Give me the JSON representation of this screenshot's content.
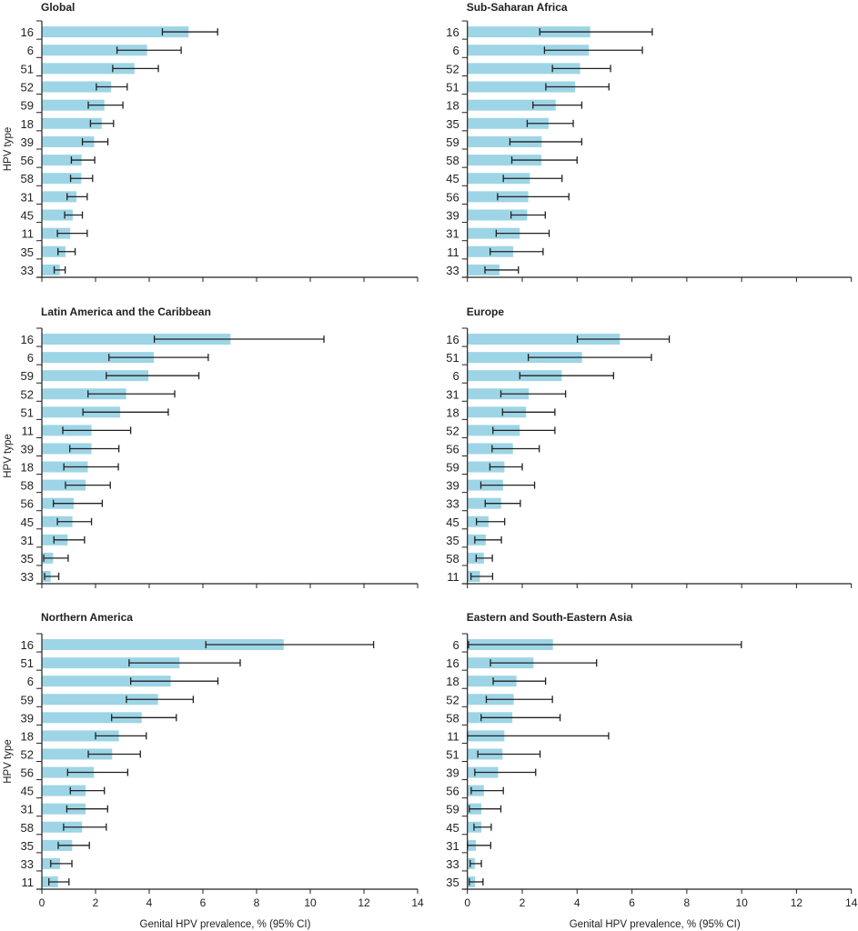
{
  "chart_data": [
    {
      "type": "bar",
      "orientation": "horizontal",
      "title": "Global",
      "xlabel": "",
      "ylabel": "HPV type",
      "xlim": [
        0,
        14
      ],
      "xticks": [
        0,
        2,
        4,
        6,
        8,
        10,
        12,
        14
      ],
      "grid": false,
      "bar_color": "#9dd5e6",
      "error_bars": "95% CI",
      "categories": [
        "16",
        "6",
        "51",
        "52",
        "59",
        "18",
        "39",
        "56",
        "58",
        "31",
        "45",
        "11",
        "35",
        "33"
      ],
      "values": [
        5.47,
        3.92,
        3.45,
        2.58,
        2.33,
        2.23,
        1.95,
        1.48,
        1.47,
        1.29,
        1.15,
        1.06,
        0.88,
        0.67
      ],
      "ci_low": [
        4.49,
        2.8,
        2.64,
        2.03,
        1.73,
        1.81,
        1.51,
        1.1,
        1.07,
        0.94,
        0.85,
        0.58,
        0.6,
        0.46
      ],
      "ci_high": [
        6.55,
        5.19,
        4.34,
        3.18,
        3.02,
        2.67,
        2.46,
        1.97,
        1.89,
        1.69,
        1.51,
        1.69,
        1.24,
        0.87
      ]
    },
    {
      "type": "bar",
      "orientation": "horizontal",
      "title": "Sub-Saharan Africa",
      "xlabel": "",
      "ylabel": "",
      "xlim": [
        0,
        14
      ],
      "xticks": [
        0,
        2,
        4,
        6,
        8,
        10,
        12,
        14
      ],
      "grid": false,
      "bar_color": "#9dd5e6",
      "error_bars": "95% CI",
      "categories": [
        "16",
        "6",
        "52",
        "51",
        "18",
        "35",
        "59",
        "58",
        "45",
        "56",
        "39",
        "31",
        "11",
        "33"
      ],
      "values": [
        4.48,
        4.43,
        4.11,
        3.93,
        3.22,
        2.96,
        2.71,
        2.7,
        2.28,
        2.22,
        2.18,
        1.91,
        1.67,
        1.17
      ],
      "ci_low": [
        2.64,
        2.81,
        3.1,
        2.86,
        2.39,
        2.18,
        1.55,
        1.62,
        1.31,
        1.1,
        1.59,
        1.05,
        0.83,
        0.64
      ],
      "ci_high": [
        6.74,
        6.38,
        5.22,
        5.16,
        4.17,
        3.86,
        4.17,
        4.0,
        3.45,
        3.7,
        2.84,
        2.98,
        2.76,
        1.86
      ]
    },
    {
      "type": "bar",
      "orientation": "horizontal",
      "title": "Latin America and the Caribbean",
      "xlabel": "",
      "ylabel": "HPV type",
      "xlim": [
        0,
        14
      ],
      "xticks": [
        0,
        2,
        4,
        6,
        8,
        10,
        12,
        14
      ],
      "grid": false,
      "bar_color": "#9dd5e6",
      "error_bars": "95% CI",
      "categories": [
        "16",
        "6",
        "59",
        "52",
        "51",
        "11",
        "39",
        "18",
        "58",
        "56",
        "45",
        "31",
        "35",
        "33"
      ],
      "values": [
        7.03,
        4.17,
        3.97,
        3.14,
        2.92,
        1.85,
        1.85,
        1.71,
        1.63,
        1.19,
        1.14,
        0.96,
        0.42,
        0.33
      ],
      "ci_low": [
        4.19,
        2.5,
        2.4,
        1.72,
        1.53,
        0.78,
        1.04,
        0.82,
        0.88,
        0.43,
        0.58,
        0.45,
        0.07,
        0.1
      ],
      "ci_high": [
        10.51,
        6.2,
        5.85,
        4.95,
        4.71,
        3.31,
        2.87,
        2.85,
        2.55,
        2.25,
        1.85,
        1.59,
        0.98,
        0.63
      ]
    },
    {
      "type": "bar",
      "orientation": "horizontal",
      "title": "Europe",
      "xlabel": "",
      "ylabel": "",
      "xlim": [
        0,
        14
      ],
      "xticks": [
        0,
        2,
        4,
        6,
        8,
        10,
        12,
        14
      ],
      "grid": false,
      "bar_color": "#9dd5e6",
      "error_bars": "95% CI",
      "categories": [
        "16",
        "51",
        "6",
        "31",
        "18",
        "52",
        "56",
        "59",
        "39",
        "33",
        "45",
        "35",
        "58",
        "11"
      ],
      "values": [
        5.56,
        4.18,
        3.44,
        2.24,
        2.14,
        1.91,
        1.66,
        1.35,
        1.3,
        1.23,
        0.77,
        0.67,
        0.6,
        0.46
      ],
      "ci_low": [
        4.01,
        2.22,
        1.91,
        1.22,
        1.28,
        0.93,
        0.9,
        0.82,
        0.49,
        0.65,
        0.33,
        0.27,
        0.32,
        0.13
      ],
      "ci_high": [
        7.36,
        6.71,
        5.33,
        3.58,
        3.19,
        3.19,
        2.62,
        2.0,
        2.45,
        1.93,
        1.36,
        1.24,
        0.91,
        0.92
      ]
    },
    {
      "type": "bar",
      "orientation": "horizontal",
      "title": "Northern America",
      "xlabel": "Genital HPV prevalence, % (95% CI)",
      "ylabel": "HPV type",
      "xlim": [
        0,
        14
      ],
      "xticks": [
        0,
        2,
        4,
        6,
        8,
        10,
        12,
        14
      ],
      "grid": false,
      "bar_color": "#9dd5e6",
      "error_bars": "95% CI",
      "categories": [
        "16",
        "51",
        "6",
        "59",
        "39",
        "18",
        "52",
        "56",
        "45",
        "31",
        "58",
        "35",
        "33",
        "11"
      ],
      "values": [
        9.01,
        5.13,
        4.8,
        4.33,
        3.72,
        2.87,
        2.62,
        1.94,
        1.63,
        1.63,
        1.5,
        1.13,
        0.68,
        0.6
      ],
      "ci_low": [
        6.11,
        3.25,
        3.31,
        3.15,
        2.6,
        2.0,
        1.73,
        0.96,
        1.06,
        0.93,
        0.81,
        0.61,
        0.33,
        0.26
      ],
      "ci_high": [
        12.36,
        7.39,
        6.56,
        5.64,
        5.01,
        3.89,
        3.67,
        3.2,
        2.33,
        2.45,
        2.4,
        1.77,
        1.12,
        1.01
      ]
    },
    {
      "type": "bar",
      "orientation": "horizontal",
      "title": "Eastern and South-Eastern Asia",
      "xlabel": "Genital HPV prevalence, % (95% CI)",
      "ylabel": "",
      "xlim": [
        0,
        14
      ],
      "xticks": [
        0,
        2,
        4,
        6,
        8,
        10,
        12,
        14
      ],
      "grid": false,
      "bar_color": "#9dd5e6",
      "error_bars": "95% CI",
      "categories": [
        "6",
        "16",
        "18",
        "52",
        "58",
        "11",
        "51",
        "39",
        "56",
        "59",
        "45",
        "31",
        "33",
        "35"
      ],
      "values": [
        3.12,
        2.41,
        1.79,
        1.69,
        1.64,
        1.35,
        1.28,
        1.12,
        0.6,
        0.51,
        0.51,
        0.31,
        0.27,
        0.28
      ],
      "ci_low": [
        0.04,
        0.84,
        0.94,
        0.69,
        0.5,
        0.0,
        0.38,
        0.27,
        0.14,
        0.07,
        0.24,
        0.0,
        0.1,
        0.07
      ],
      "ci_high": [
        9.99,
        4.71,
        2.85,
        3.1,
        3.38,
        5.15,
        2.65,
        2.49,
        1.31,
        1.22,
        0.87,
        0.85,
        0.51,
        0.57
      ]
    }
  ]
}
